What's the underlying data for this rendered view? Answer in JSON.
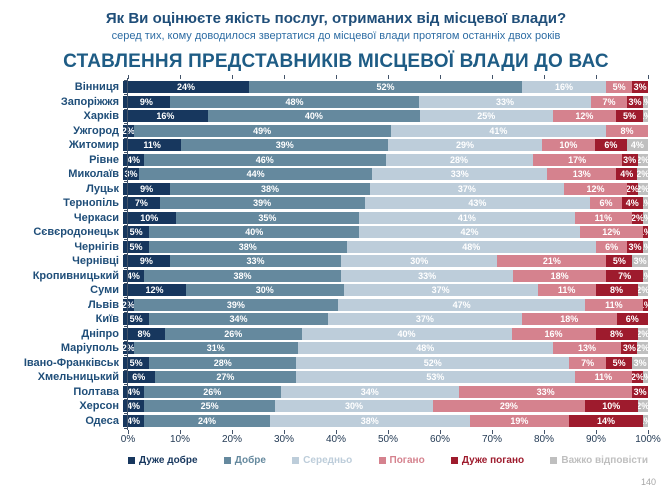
{
  "header": {
    "title": "Як Ви оцінюєте якість послуг, отриманих від місцевої влади?",
    "subtitle": "серед тих, кому доводилося звертатися до місцевої влади протягом останніх двох років"
  },
  "chart_title": "СТАВЛЕННЯ ПРЕДСТАВНИКІВ МІСЦЕВОЇ ВЛАДИ ДО ВАС",
  "footnote": "140",
  "colors": {
    "title_blue": "#1f4e79",
    "axis": "#44546a",
    "very_good": "#17375e",
    "good": "#65899e",
    "medium": "#bdcdda",
    "bad": "#d5828e",
    "very_bad": "#9e1b2d",
    "hard_to_say": "#bfbfbf"
  },
  "chart_data": {
    "type": "bar",
    "stacked": true,
    "orientation": "horizontal",
    "title": "СТАВЛЕННЯ ПРЕДСТАВНИКІВ МІСЦЕВОЇ ВЛАДИ ДО ВАС",
    "xlim": [
      0,
      100
    ],
    "x_axis_ticks": [
      "0%",
      "10%",
      "20%",
      "30%",
      "40%",
      "50%",
      "60%",
      "70%",
      "80%",
      "90%",
      "100%"
    ],
    "legend_position": "bottom",
    "unit": "%",
    "categories": [
      "Вінниця",
      "Запоріжжя",
      "Харків",
      "Ужгород",
      "Житомир",
      "Рівне",
      "Миколаїв",
      "Луцьк",
      "Тернопіль",
      "Черкаси",
      "Сєвєродонецьк",
      "Чернігів",
      "Чернівці",
      "Кропивницький",
      "Суми",
      "Львів",
      "Київ",
      "Дніпро",
      "Маріуполь",
      "Івано-Франківськ",
      "Хмельницький",
      "Полтава",
      "Херсон",
      "Одеса"
    ],
    "series": [
      {
        "name": "Дуже добре",
        "color": "#17375e",
        "values": [
          24,
          9,
          16,
          2,
          11,
          4,
          3,
          9,
          7,
          10,
          5,
          5,
          9,
          4,
          12,
          2,
          5,
          8,
          2,
          5,
          6,
          4,
          4,
          4
        ]
      },
      {
        "name": "Добре",
        "color": "#65899e",
        "values": [
          52,
          48,
          40,
          49,
          39,
          46,
          44,
          38,
          39,
          35,
          40,
          38,
          33,
          38,
          30,
          39,
          34,
          26,
          31,
          28,
          27,
          26,
          25,
          24
        ]
      },
      {
        "name": "Середньо",
        "color": "#bdcdda",
        "values": [
          16,
          33,
          25,
          41,
          29,
          28,
          33,
          37,
          43,
          41,
          42,
          48,
          30,
          33,
          37,
          47,
          37,
          40,
          48,
          52,
          53,
          34,
          30,
          38
        ]
      },
      {
        "name": "Погано",
        "color": "#d5828e",
        "values": [
          5,
          7,
          12,
          8,
          10,
          17,
          13,
          12,
          6,
          11,
          12,
          6,
          21,
          18,
          11,
          11,
          18,
          16,
          13,
          7,
          11,
          33,
          29,
          19
        ]
      },
      {
        "name": "Дуже погано",
        "color": "#9e1b2d",
        "values": [
          3,
          3,
          5,
          0,
          6,
          3,
          4,
          2,
          4,
          2,
          1,
          3,
          5,
          7,
          8,
          1,
          6,
          8,
          3,
          5,
          2,
          3,
          10,
          14
        ]
      },
      {
        "name": "Важко відповісти",
        "color": "#bfbfbf",
        "values": [
          0,
          1,
          1,
          0,
          4,
          2,
          2,
          2,
          1,
          1,
          0,
          1,
          3,
          1,
          2,
          0,
          0,
          2,
          2,
          3,
          1,
          0,
          2,
          1
        ]
      }
    ]
  }
}
